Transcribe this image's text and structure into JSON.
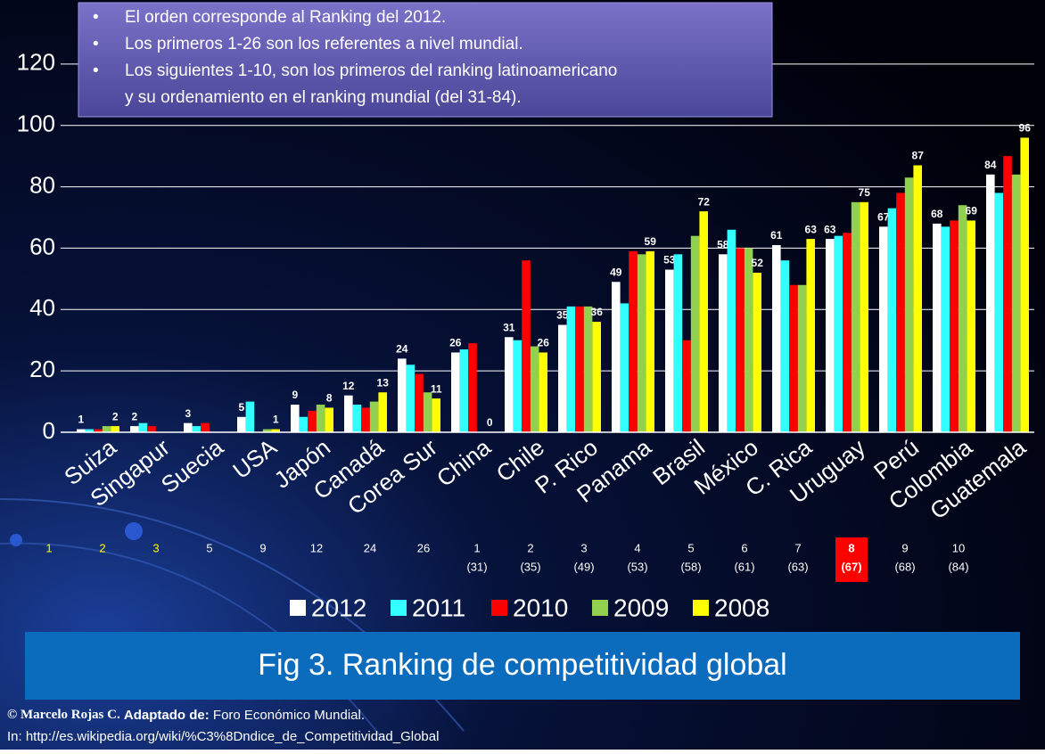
{
  "notes": [
    "El orden corresponde al Ranking del 2012.",
    "Los primeros 1-26 son los referentes a nivel mundial.",
    "Los siguientes 1-10, son los primeros del ranking latinoamericano",
    "y su ordenamiento en el ranking mundial (del 31-84)."
  ],
  "chart_data": {
    "type": "bar",
    "categories": [
      "Suiza",
      "Singapur",
      "Suecia",
      "USA",
      "Japón",
      "Canadá",
      "Corea Sur",
      "China",
      "Chile",
      "P. Rico",
      "Panama",
      "Brasil",
      "México",
      "C. Rica",
      "Uruguay",
      "Perú",
      "Colombia",
      "Guatemala"
    ],
    "series": [
      {
        "name": "2012",
        "color": "#ffffff",
        "values": [
          1,
          2,
          3,
          5,
          9,
          12,
          24,
          26,
          31,
          35,
          49,
          53,
          58,
          61,
          63,
          67,
          68,
          84
        ],
        "value_labels": [
          "1",
          "2",
          "3",
          "5",
          "9",
          "12",
          "24",
          "26",
          "31",
          "35",
          "49",
          "53",
          "58",
          "61",
          "63",
          "67",
          "68",
          "84"
        ]
      },
      {
        "name": "2011",
        "color": "#33ffff",
        "values": [
          1,
          3,
          2,
          10,
          5,
          9,
          22,
          27,
          30,
          41,
          42,
          58,
          66,
          56,
          64,
          73,
          67,
          78
        ]
      },
      {
        "name": "2010",
        "color": "#ff0000",
        "values": [
          1,
          2,
          3,
          null,
          7,
          8,
          19,
          29,
          56,
          41,
          59,
          30,
          60,
          48,
          65,
          78,
          69,
          90
        ]
      },
      {
        "name": "2009",
        "color": "#92d050",
        "values": [
          2,
          null,
          null,
          1,
          9,
          10,
          13,
          null,
          28,
          41,
          58,
          64,
          60,
          48,
          75,
          83,
          74,
          84
        ]
      },
      {
        "name": "2008",
        "color": "#ffff00",
        "values": [
          2,
          null,
          null,
          1,
          8,
          13,
          11,
          0,
          26,
          36,
          59,
          72,
          52,
          63,
          75,
          87,
          69,
          96
        ],
        "value_labels": [
          "2",
          null,
          null,
          "1",
          "8",
          "13",
          "11",
          "0",
          "26",
          "36",
          "59",
          "72",
          "52",
          "63",
          "75",
          "87",
          "69",
          "96"
        ]
      }
    ],
    "ylim": [
      0,
      140
    ],
    "yticks": [
      0,
      20,
      40,
      60,
      80,
      100,
      120
    ],
    "grid": true,
    "rank": [
      "1",
      "2",
      "3",
      "5",
      "9",
      "12",
      "24",
      "26",
      "1",
      "2",
      "3",
      "4",
      "5",
      "6",
      "7",
      "8",
      "9",
      "10"
    ],
    "world_rank": [
      null,
      null,
      null,
      null,
      null,
      null,
      null,
      null,
      "(31)",
      "(35)",
      "(49)",
      "(53)",
      "(58)",
      "(61)",
      "(63)",
      "(67)",
      "(68)",
      "(84)"
    ],
    "highlight": 15
  },
  "caption": "Fig 3. Ranking de competitividad global",
  "credit": {
    "author": "© Marcelo Rojas C.",
    "label": "Adaptado de:",
    "source": "Foro Económico Mundial.",
    "url": "In: http://es.wikipedia.org/wiki/%C3%8Dndice_de_Competitividad_Global"
  }
}
